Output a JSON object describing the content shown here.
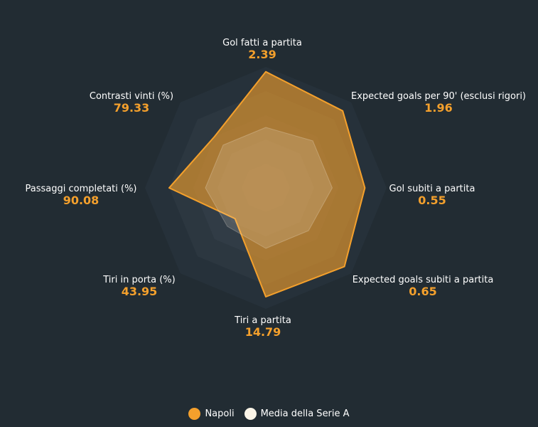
{
  "colors": {
    "background": "#222c33",
    "napoli": "#f4a02c",
    "media": "#fbf5e8",
    "label": "#ffffff",
    "value": "#f4a02c"
  },
  "chart_data": {
    "type": "radar",
    "axes": [
      {
        "label": "Gol fatti a partita",
        "value_text": "2.39"
      },
      {
        "label": "Expected goals per 90' (esclusi rigori)",
        "value_text": "1.96"
      },
      {
        "label": "Gol subiti a partita",
        "value_text": "0.55"
      },
      {
        "label": "Expected goals subiti a partita",
        "value_text": "0.65"
      },
      {
        "label": "Tiri a partita",
        "value_text": "14.79"
      },
      {
        "label": "Tiri in porta (%)",
        "value_text": "43.95"
      },
      {
        "label": "Passaggi completati (%)",
        "value_text": "90.08"
      },
      {
        "label": "Contrasti vinti (%)",
        "value_text": "79.33"
      }
    ],
    "series": [
      {
        "name": "Napoli",
        "normalized_values": [
          0.96,
          0.9,
          0.82,
          0.92,
          0.9,
          0.36,
          0.8,
          0.6
        ]
      },
      {
        "name": "Media della Serie A",
        "normalized_values": [
          0.5,
          0.55,
          0.55,
          0.5,
          0.5,
          0.45,
          0.5,
          0.5
        ]
      }
    ],
    "rings": 5,
    "legend_position": "bottom"
  },
  "legend": {
    "items": [
      {
        "name": "Napoli"
      },
      {
        "name": "Media della Serie A"
      }
    ]
  }
}
